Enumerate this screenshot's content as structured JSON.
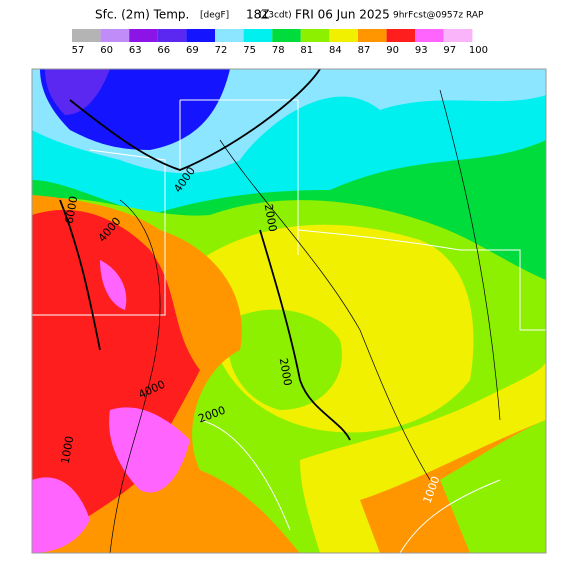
{
  "header": {
    "title_parts": [
      "Sfc. (2m) Temp.",
      "[degF]",
      "18Z",
      "(13cdt)",
      "FRI 06 Jun 2025",
      "9hrFcst@0957z RAP"
    ]
  },
  "colorbar": {
    "labels": [
      57,
      60,
      63,
      66,
      69,
      72,
      75,
      78,
      81,
      84,
      87,
      90,
      93,
      97,
      100
    ],
    "colors": [
      "#b4b4b4",
      "#c08cf8",
      "#8c14e6",
      "#5a28f0",
      "#1414ff",
      "#8ce6ff",
      "#00f0f0",
      "#00dc3c",
      "#8cf000",
      "#f0f000",
      "#ff9600",
      "#ff1e1e",
      "#ff64ff",
      "#fab4fa"
    ]
  },
  "map": {
    "contour_labels": [
      "6000",
      "4000",
      "4000",
      "2000",
      "2000",
      "4000",
      "2000",
      "1000",
      "1000"
    ]
  }
}
